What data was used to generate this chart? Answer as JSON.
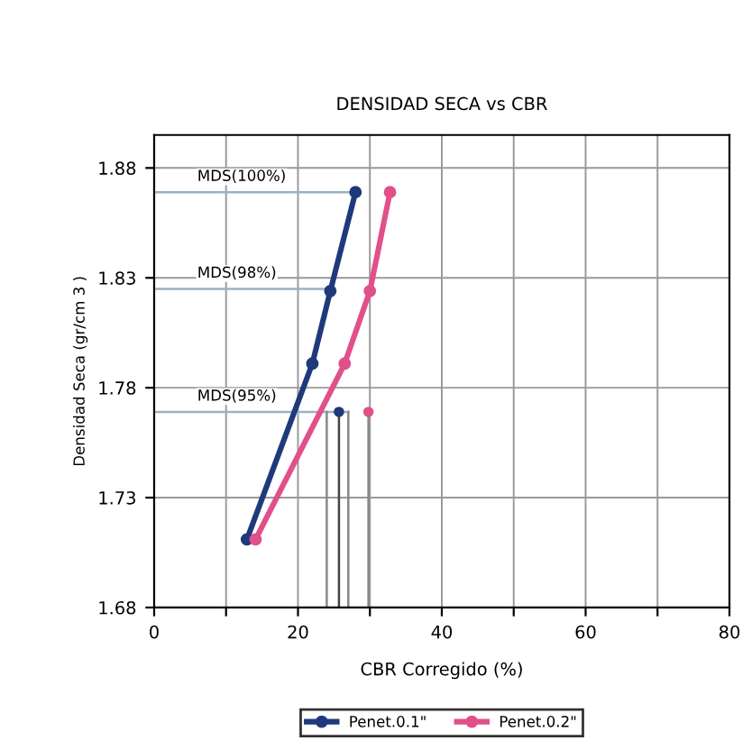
{
  "chart_data": {
    "type": "line",
    "title": "DENSIDAD SECA vs CBR",
    "xlabel": "CBR Corregido (%)",
    "ylabel": "Densidad Seca (gr/cm 3 )",
    "xlim": [
      0,
      80
    ],
    "ylim": [
      1.68,
      1.895
    ],
    "xticks": [
      0,
      {
        "value": 10,
        "label": null
      },
      20,
      {
        "value": 30,
        "label": null
      },
      40,
      {
        "value": 50,
        "label": null
      },
      60,
      {
        "value": 70,
        "label": null
      },
      80
    ],
    "yticks": [
      {
        "value": 1.68,
        "label": "1.68"
      },
      {
        "value": 1.73,
        "label": "1.73"
      },
      {
        "value": 1.78,
        "label": "1.78"
      },
      {
        "value": 1.83,
        "label": "1.83"
      },
      {
        "value": 1.88,
        "label": "1.88"
      }
    ],
    "grid": true,
    "legend": "bottom",
    "marker": "circle",
    "series": [
      {
        "name": "Penet.0.1\"",
        "color": "#1f3a7a",
        "x": [
          12.9,
          22.0,
          24.5,
          28.0
        ],
        "values": [
          1.711,
          1.791,
          1.824,
          1.869
        ]
      },
      {
        "name": "Penet.0.2\"",
        "color": "#e0508a",
        "x": [
          14.1,
          26.5,
          30.0,
          32.8
        ],
        "values": [
          1.711,
          1.791,
          1.824,
          1.869
        ]
      },
      {
        "type": "line",
        "marker": "none",
        "name": "MDS(100%)",
        "color": "#9ab0c8",
        "x": [
          0,
          28.0
        ],
        "values": [
          1.869,
          1.869
        ]
      },
      {
        "type": "line",
        "marker": "none",
        "name": "MDS(98%)",
        "color": "#9ab0c8",
        "x": [
          0,
          24.5
        ],
        "values": [
          1.825,
          1.825
        ]
      },
      {
        "type": "line",
        "marker": "none",
        "name": "MDS(95%)",
        "color": "#9ab0c8",
        "x": [
          0,
          27.0
        ],
        "values": [
          1.769,
          1.769
        ]
      },
      {
        "type": "line",
        "marker": "none",
        "color": "#888888",
        "x": [
          24.0,
          24.0
        ],
        "values": [
          1.68,
          1.769
        ]
      },
      {
        "type": "line",
        "marker": "none",
        "color": "#444444",
        "x": [
          25.7,
          25.7
        ],
        "values": [
          1.68,
          1.769
        ]
      },
      {
        "type": "line",
        "marker": "none",
        "color": "#888888",
        "x": [
          27.0,
          27.0
        ],
        "values": [
          1.68,
          1.769
        ]
      },
      {
        "type": "line",
        "marker": "none",
        "color": "#888888",
        "x": [
          29.8,
          29.8
        ],
        "values": [
          1.68,
          1.769
        ]
      },
      {
        "type": "scatter",
        "marker": "circle",
        "color": "#1f3a7a",
        "x": [
          25.7
        ],
        "values": [
          1.769
        ]
      },
      {
        "type": "scatter",
        "marker": "circle",
        "color": "#e0508a",
        "x": [
          29.8
        ],
        "values": [
          1.769
        ]
      }
    ]
  }
}
